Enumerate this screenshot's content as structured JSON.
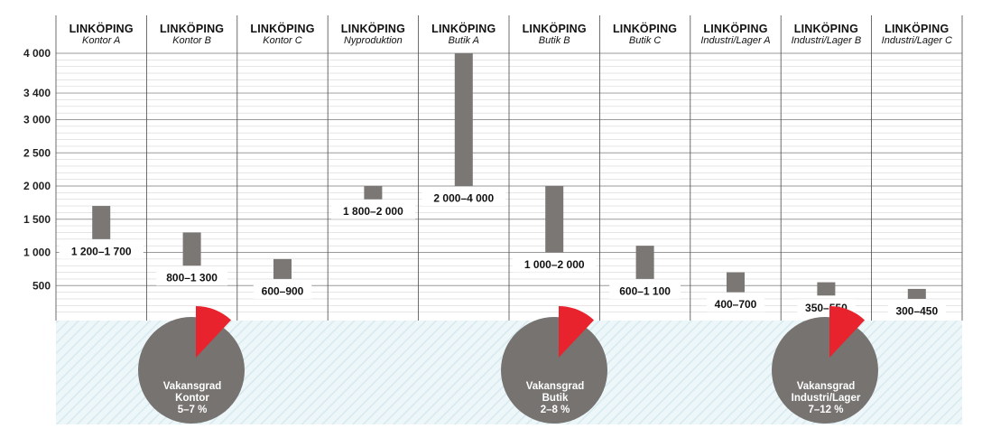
{
  "chart_data": {
    "type": "floating-bar",
    "ylim": [
      0,
      4000
    ],
    "yticks": [
      {
        "value": 500,
        "label": "500"
      },
      {
        "value": 1000,
        "label": "1 000"
      },
      {
        "value": 1500,
        "label": "1 500"
      },
      {
        "value": 2000,
        "label": "2 000"
      },
      {
        "value": 2500,
        "label": "2 500"
      },
      {
        "value": 3000,
        "label": "3 000"
      },
      {
        "value": 3400,
        "label": "3 400"
      },
      {
        "value": 4000,
        "label": "4 000"
      }
    ],
    "columns": [
      {
        "city": "LINKÖPING",
        "category": "Kontor A",
        "low": 1200,
        "high": 1700,
        "label": "1 200–1 700"
      },
      {
        "city": "LINKÖPING",
        "category": "Kontor B",
        "low": 800,
        "high": 1300,
        "label": "800–1 300"
      },
      {
        "city": "LINKÖPING",
        "category": "Kontor C",
        "low": 600,
        "high": 900,
        "label": "600–900"
      },
      {
        "city": "LINKÖPING",
        "category": "Nyproduktion",
        "low": 1800,
        "high": 2000,
        "label": "1 800–2 000"
      },
      {
        "city": "LINKÖPING",
        "category": "Butik A",
        "low": 2000,
        "high": 4000,
        "label": "2 000–4 000"
      },
      {
        "city": "LINKÖPING",
        "category": "Butik B",
        "low": 1000,
        "high": 2000,
        "label": "1 000–2 000"
      },
      {
        "city": "LINKÖPING",
        "category": "Butik C",
        "low": 600,
        "high": 1100,
        "label": "600–1 100"
      },
      {
        "city": "LINKÖPING",
        "category": "Industri/Lager A",
        "low": 400,
        "high": 700,
        "label": "400–700"
      },
      {
        "city": "LINKÖPING",
        "category": "Industri/Lager B",
        "low": 350,
        "high": 550,
        "label": "350–550"
      },
      {
        "city": "LINKÖPING",
        "category": "Industri/Lager C",
        "low": 300,
        "high": 450,
        "label": "300–450"
      }
    ],
    "vacancy": [
      {
        "lines": [
          "Vakansgrad",
          "Kontor",
          "5–7 %"
        ],
        "share": 0.12
      },
      {
        "lines": [
          "Vakansgrad",
          "Butik",
          "2–8 %"
        ],
        "share": 0.12
      },
      {
        "lines": [
          "Vakansgrad",
          "Industri/Lager",
          "7–12 %"
        ],
        "share": 0.12
      }
    ],
    "colors": {
      "bar": "#7a7775",
      "pie": "#767371",
      "pie_highlight": "#e8232d",
      "hatch_bg": "#edf6f8",
      "hatch_line": "#d7eaf0",
      "grid": "#d6d6d6",
      "divider": "#4a4a4a"
    }
  }
}
